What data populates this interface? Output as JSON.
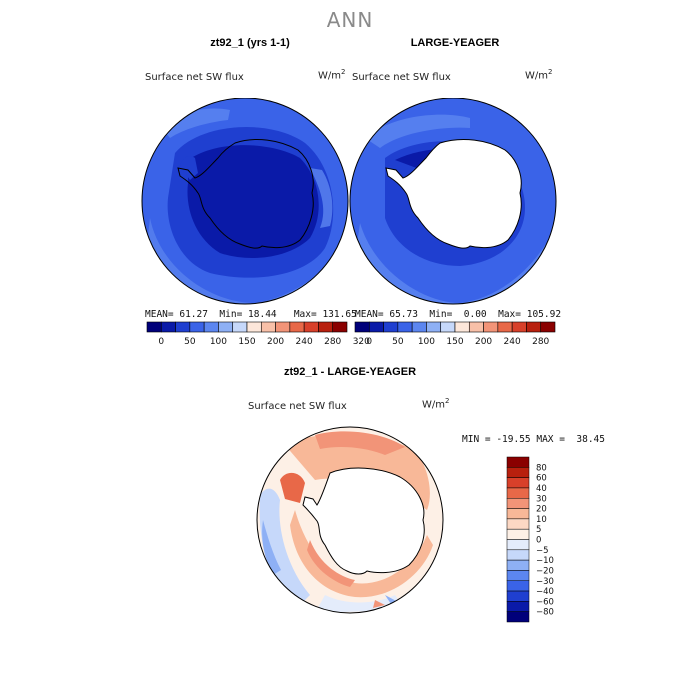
{
  "figure": {
    "title": "ANN",
    "panels": [
      {
        "id": "model",
        "title": "zt92_1 (yrs 1-1)",
        "variable": "Surface net SW flux",
        "units_base": "W/m",
        "units_exp": "2",
        "stats": {
          "mean_label": "MEAN=",
          "mean": "61.27",
          "min_label": "Min=",
          "min": "18.44",
          "max_label": "Max=",
          "max": "131.65"
        }
      },
      {
        "id": "obs",
        "title": "LARGE-YEAGER",
        "variable": "Surface net SW flux",
        "units_base": "W/m",
        "units_exp": "2",
        "stats": {
          "mean_label": "MEAN=",
          "mean": "65.73",
          "min_label": "Min=",
          "min": "0.00",
          "max_label": "Max=",
          "max": "105.92"
        }
      },
      {
        "id": "diff",
        "title": "zt92_1 - LARGE-YEAGER",
        "variable": "Surface net SW flux",
        "units_base": "W/m",
        "units_exp": "2",
        "minmax_text": "MIN = -19.55 MAX =  38.45"
      }
    ],
    "colorbar_top": {
      "labels": [
        "0",
        "50",
        "100",
        "150",
        "200",
        "240",
        "280",
        "320"
      ],
      "colors": [
        "#00007a",
        "#0a1aa8",
        "#1f3fd0",
        "#3a63e8",
        "#5c86f0",
        "#8eb0f5",
        "#c6d8fa",
        "#fde7da",
        "#f8c0a8",
        "#f29478",
        "#e86848",
        "#d8402a",
        "#b8200e",
        "#8a0000"
      ]
    },
    "colorbar_diff": {
      "labels": [
        "80",
        "60",
        "40",
        "30",
        "20",
        "10",
        "5",
        "0",
        "−5",
        "−10",
        "−20",
        "−30",
        "−40",
        "−60",
        "−80"
      ],
      "colors": [
        "#8a0000",
        "#b8200e",
        "#d8402a",
        "#e86848",
        "#f29478",
        "#f8b898",
        "#fcd8c4",
        "#fdf0e6",
        "#e4ecfb",
        "#c6d8fa",
        "#8eb0f5",
        "#5c86f0",
        "#3a63e8",
        "#1f3fd0",
        "#0a1aa8",
        "#00007a"
      ]
    }
  }
}
